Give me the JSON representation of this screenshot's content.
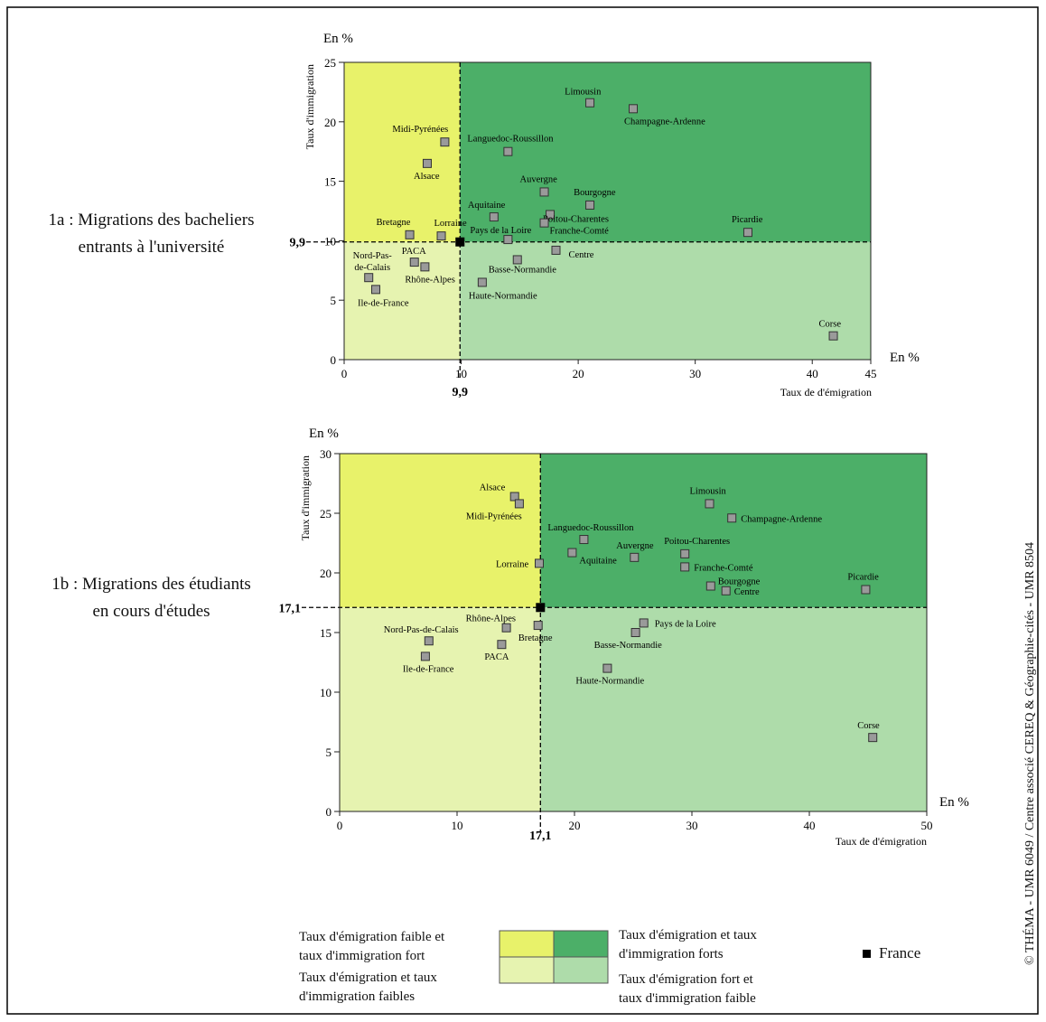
{
  "colors": {
    "low_em_high_im": "#e8f26a",
    "high_em_high_im": "#4caf68",
    "low_em_low_im": "#e6f3b0",
    "high_em_low_im": "#aedcaa",
    "marker_fill": "#9a9a9a",
    "france_marker": "#000000"
  },
  "chart_data": [
    {
      "type": "scatter",
      "title": "1a : Migrations des bacheliers entrants à l'université",
      "xlabel": "Taux de d'émigration",
      "ylabel": "Taux d'immigration",
      "x_unit": "En %",
      "y_unit": "En %",
      "xlim": [
        0,
        45
      ],
      "ylim": [
        0,
        25
      ],
      "xticks": [
        0,
        10,
        20,
        30,
        40,
        45
      ],
      "yticks": [
        0,
        5,
        10,
        15,
        20,
        25
      ],
      "reference": {
        "x": 9.9,
        "y": 9.9,
        "x_label": "9,9",
        "y_label": "9,9",
        "name": "France"
      },
      "points": [
        {
          "name": "Limousin",
          "x": 21,
          "y": 21.6
        },
        {
          "name": "Champagne-Ardenne",
          "x": 24.7,
          "y": 21.1
        },
        {
          "name": "Midi-Pyrénées",
          "x": 8.6,
          "y": 18.3
        },
        {
          "name": "Languedoc-Roussillon",
          "x": 14,
          "y": 17.5
        },
        {
          "name": "Alsace",
          "x": 7.1,
          "y": 16.5
        },
        {
          "name": "Auvergne",
          "x": 17.1,
          "y": 14.1
        },
        {
          "name": "Bourgogne",
          "x": 21,
          "y": 13
        },
        {
          "name": "Aquitaine",
          "x": 12.8,
          "y": 12
        },
        {
          "name": "Poitou-Charentes",
          "x": 17.6,
          "y": 12.2
        },
        {
          "name": "Franche-Comté",
          "x": 17.1,
          "y": 11.5
        },
        {
          "name": "Bretagne",
          "x": 5.6,
          "y": 10.5
        },
        {
          "name": "Lorraine",
          "x": 8.3,
          "y": 10.4
        },
        {
          "name": "Pays de la Loire",
          "x": 14,
          "y": 10.1
        },
        {
          "name": "Picardie",
          "x": 34.5,
          "y": 10.7
        },
        {
          "name": "Centre",
          "x": 18.1,
          "y": 9.2
        },
        {
          "name": "Basse-Normandie",
          "x": 14.8,
          "y": 8.4
        },
        {
          "name": "PACA",
          "x": 6,
          "y": 8.2
        },
        {
          "name": "Rhône-Alpes",
          "x": 6.9,
          "y": 7.8
        },
        {
          "name": "Nord-Pas-de-Calais",
          "x": 2.1,
          "y": 6.9
        },
        {
          "name": "Haute-Normandie",
          "x": 11.8,
          "y": 6.5
        },
        {
          "name": "Ile-de-France",
          "x": 2.7,
          "y": 5.9
        },
        {
          "name": "Corse",
          "x": 41.8,
          "y": 2
        }
      ]
    },
    {
      "type": "scatter",
      "title": "1b : Migrations des étudiants en cours d'études",
      "xlabel": "Taux de d'émigration",
      "ylabel": "Taux d'immigration",
      "x_unit": "En %",
      "y_unit": "En %",
      "xlim": [
        0,
        50
      ],
      "ylim": [
        0,
        30
      ],
      "xticks": [
        0,
        10,
        20,
        30,
        40,
        50
      ],
      "yticks": [
        0,
        5,
        10,
        15,
        20,
        25,
        30
      ],
      "reference": {
        "x": 17.1,
        "y": 17.1,
        "x_label": "17,1",
        "y_label": "17,1",
        "name": "France"
      },
      "points": [
        {
          "name": "Alsace",
          "x": 14.9,
          "y": 26.4
        },
        {
          "name": "Midi-Pyrénées",
          "x": 15.3,
          "y": 25.8
        },
        {
          "name": "Limousin",
          "x": 31.5,
          "y": 25.8
        },
        {
          "name": "Champagne-Ardenne",
          "x": 33.4,
          "y": 24.6
        },
        {
          "name": "Languedoc-Roussillon",
          "x": 20.8,
          "y": 22.8
        },
        {
          "name": "Aquitaine",
          "x": 19.8,
          "y": 21.7
        },
        {
          "name": "Auvergne",
          "x": 25.1,
          "y": 21.3
        },
        {
          "name": "Poitou-Charentes",
          "x": 29.4,
          "y": 21.6
        },
        {
          "name": "Lorraine",
          "x": 17,
          "y": 20.8
        },
        {
          "name": "Franche-Comté",
          "x": 29.4,
          "y": 20.5
        },
        {
          "name": "Bourgogne",
          "x": 31.6,
          "y": 18.9
        },
        {
          "name": "Centre",
          "x": 32.9,
          "y": 18.5
        },
        {
          "name": "Picardie",
          "x": 44.8,
          "y": 18.6
        },
        {
          "name": "Pays de la Loire",
          "x": 25.9,
          "y": 15.8
        },
        {
          "name": "Rhône-Alpes",
          "x": 14.2,
          "y": 15.4
        },
        {
          "name": "Bretagne",
          "x": 16.9,
          "y": 15.6
        },
        {
          "name": "Basse-Normandie",
          "x": 25.2,
          "y": 15
        },
        {
          "name": "Nord-Pas-de-Calais",
          "x": 7.6,
          "y": 14.3
        },
        {
          "name": "PACA",
          "x": 13.8,
          "y": 14
        },
        {
          "name": "Ile-de-France",
          "x": 7.3,
          "y": 13
        },
        {
          "name": "Haute-Normandie",
          "x": 22.8,
          "y": 12
        },
        {
          "name": "Corse",
          "x": 45.4,
          "y": 6.2
        }
      ]
    }
  ],
  "side_titles": {
    "a_line1": "1a : Migrations des bacheliers",
    "a_line2": "entrants à l'université",
    "b_line1": "1b : Migrations  des étudiants",
    "b_line2": "en cours d'études"
  },
  "legend": {
    "low_em_high_im_line1": "Taux d'émigration faible et",
    "low_em_high_im_line2": "taux d'immigration fort",
    "high_em_high_im_line1": "Taux d'émigration et taux",
    "high_em_high_im_line2": "d'immigration forts",
    "low_em_low_im_line1": "Taux d'émigration et taux",
    "low_em_low_im_line2": "d'immigration faibles",
    "high_em_low_im_line1": "Taux d'émigration fort et",
    "high_em_low_im_line2": "taux d'immigration faible",
    "france": "France"
  },
  "credit": "© THÉMA - UMR 6049 / Centre associé CEREQ & Géographie-cités - UMR 8504"
}
